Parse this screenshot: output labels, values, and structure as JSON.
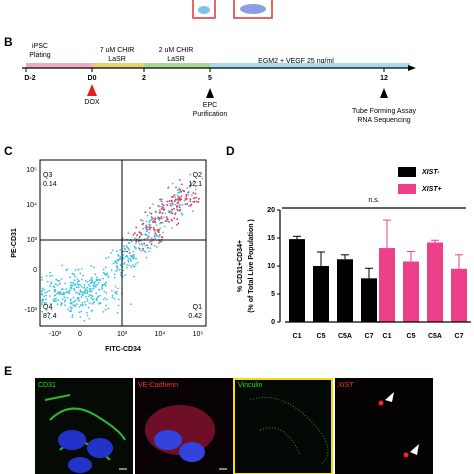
{
  "panel_b": {
    "label": "B",
    "top_left": "iPSC",
    "top_left_2": "Plating",
    "stage1": "7 uM CHIR",
    "stage1_2": "LaSR",
    "stage2": "2 uM CHIR",
    "stage2_2": "LaSR",
    "stage3": "EGM2 + VEGF 25 ng/ml",
    "days": [
      "D-2",
      "D0",
      "2",
      "5",
      "12"
    ],
    "dox": "DOX",
    "epc": "EPC",
    "epc_2": "Purification",
    "assay": "Tube Forming Assay",
    "assay_2": "RNA Sequencing"
  },
  "panel_c": {
    "label": "C",
    "ylabel": "PE-CD31",
    "xlabel": "FITC-CD34",
    "quadrants": [
      {
        "name": "Q3",
        "value": "0.14"
      },
      {
        "name": "Q2",
        "value": "12.1"
      },
      {
        "name": "Q4",
        "value": "87.4"
      },
      {
        "name": "Q1",
        "value": "0.42"
      }
    ],
    "yticks": [
      "10⁵",
      "10⁴",
      "10³",
      "0",
      "-10³"
    ],
    "xticks": [
      "-10³",
      "0",
      "10³",
      "10⁴",
      "10⁵"
    ]
  },
  "chart_data": {
    "type": "bar",
    "label": "D",
    "ylabel": "% CD31+CD34+",
    "ylabel_2": "(% of Total Live Population )",
    "categories": [
      "C1",
      "C5",
      "C5A",
      "C7"
    ],
    "annotation": "n.s.",
    "series": [
      {
        "name": "XIST-",
        "color": "#000000",
        "values": [
          14.8,
          10.0,
          11.2,
          7.8
        ],
        "errors": [
          0.5,
          2.5,
          0.8,
          1.8
        ]
      },
      {
        "name": "XIST+",
        "color": "#ee3f8a",
        "values": [
          13.2,
          10.8,
          14.2,
          9.5
        ],
        "errors": [
          5.0,
          1.8,
          0.4,
          2.5
        ]
      }
    ],
    "ylim": [
      0,
      20
    ],
    "yticks": [
      0,
      5,
      10,
      15,
      20
    ]
  },
  "panel_e": {
    "label": "E",
    "stains": [
      "CD31",
      "VE-Cadherin",
      "Vinculin",
      "XIST"
    ]
  }
}
